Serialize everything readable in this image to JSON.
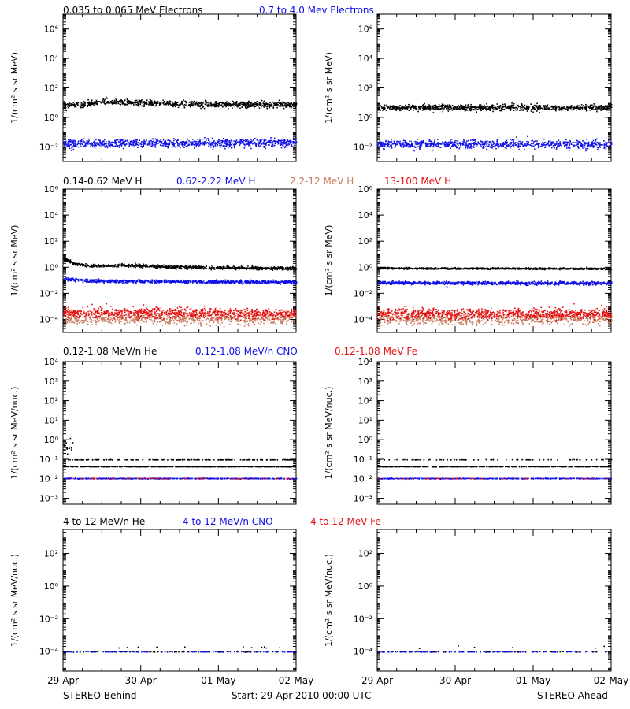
{
  "colors": {
    "black": "#000000",
    "blue": "#1010e6",
    "salmon": "#c87a5e",
    "red": "#e61010"
  },
  "chart_data": [
    {
      "type": "scatter",
      "title_row": 0,
      "legend": [
        {
          "name": "0.035 to 0.065 MeV Electrons",
          "color": "black"
        },
        {
          "name": "0.7 to 4.0 Mev Electrons",
          "color": "blue"
        }
      ],
      "ylabel": "1/(cm² s sr MeV)",
      "yscale": "log",
      "ylim": [
        0.001,
        10000000
      ],
      "yticks": [
        {
          "v": 0.01,
          "label": "10⁻²"
        },
        {
          "v": 1,
          "label": "10⁰"
        },
        {
          "v": 100,
          "label": "10²"
        },
        {
          "v": 10000,
          "label": "10⁴"
        },
        {
          "v": 1000000,
          "label": "10⁶"
        }
      ],
      "panels": {
        "behind": [
          {
            "color": "black",
            "base": [
              [
                0,
                7
              ],
              [
                0.3,
                8
              ],
              [
                0.5,
                13
              ],
              [
                0.8,
                11
              ],
              [
                1.5,
                9
              ],
              [
                2.3,
                8
              ],
              [
                3,
                8
              ]
            ],
            "spread": 0.1,
            "n": 900
          },
          {
            "color": "blue",
            "base": [
              [
                0,
                0.018
              ],
              [
                3,
                0.02
              ]
            ],
            "spread": 0.14,
            "n": 900
          }
        ],
        "ahead": [
          {
            "color": "black",
            "base": [
              [
                0,
                5
              ],
              [
                3,
                5
              ]
            ],
            "spread": 0.1,
            "n": 900
          },
          {
            "color": "blue",
            "base": [
              [
                0,
                0.016
              ],
              [
                3,
                0.016
              ]
            ],
            "spread": 0.14,
            "n": 900
          }
        ]
      }
    },
    {
      "type": "scatter",
      "title_row": 1,
      "legend": [
        {
          "name": "0.14-0.62 MeV H",
          "color": "black"
        },
        {
          "name": "0.62-2.22 MeV H",
          "color": "blue"
        },
        {
          "name": "2.2-12 MeV H",
          "color": "salmon"
        },
        {
          "name": "13-100 MeV H",
          "color": "red"
        }
      ],
      "ylabel": "1/(cm² s sr MeV)",
      "yscale": "log",
      "ylim": [
        1e-05,
        1000000
      ],
      "yticks": [
        {
          "v": 0.0001,
          "label": "10⁻⁴"
        },
        {
          "v": 0.01,
          "label": "10⁻²"
        },
        {
          "v": 1,
          "label": "10⁰"
        },
        {
          "v": 100,
          "label": "10²"
        },
        {
          "v": 10000,
          "label": "10⁴"
        },
        {
          "v": 1000000,
          "label": "10⁶"
        }
      ],
      "panels": {
        "behind": [
          {
            "color": "black",
            "base": [
              [
                0,
                5
              ],
              [
                0.15,
                2
              ],
              [
                0.35,
                1.4
              ],
              [
                0.8,
                1.6
              ],
              [
                1.2,
                1.2
              ],
              [
                2,
                1
              ],
              [
                3,
                0.9
              ]
            ],
            "spread": 0.06,
            "n": 900
          },
          {
            "color": "blue",
            "base": [
              [
                0,
                0.14
              ],
              [
                0.3,
                0.1
              ],
              [
                1,
                0.09
              ],
              [
                3,
                0.08
              ]
            ],
            "spread": 0.06,
            "n": 900
          },
          {
            "color": "salmon",
            "base": [
              [
                0,
                0.00012
              ],
              [
                3,
                0.00012
              ]
            ],
            "spread": 0.22,
            "n": 700
          },
          {
            "color": "red",
            "base": [
              [
                0,
                0.00035
              ],
              [
                3,
                0.0003
              ]
            ],
            "spread": 0.2,
            "n": 900
          }
        ],
        "ahead": [
          {
            "color": "black",
            "base": [
              [
                0,
                0.9
              ],
              [
                3,
                0.85
              ]
            ],
            "spread": 0.03,
            "n": 900
          },
          {
            "color": "blue",
            "base": [
              [
                0,
                0.07
              ],
              [
                3,
                0.065
              ]
            ],
            "spread": 0.06,
            "n": 900
          },
          {
            "color": "salmon",
            "base": [
              [
                0,
                0.00012
              ],
              [
                3,
                0.00012
              ]
            ],
            "spread": 0.22,
            "n": 700
          },
          {
            "color": "red",
            "base": [
              [
                0,
                0.0003
              ],
              [
                3,
                0.0003
              ]
            ],
            "spread": 0.2,
            "n": 900
          }
        ]
      }
    },
    {
      "type": "scatter",
      "title_row": 2,
      "legend": [
        {
          "name": "0.12-1.08 MeV/n He",
          "color": "black"
        },
        {
          "name": "0.12-1.08 MeV/n CNO",
          "color": "blue"
        },
        {
          "name": "0.12-1.08 MeV Fe",
          "color": "red"
        }
      ],
      "ylabel": "1/(cm² s sr MeV/nuc.)",
      "yscale": "log",
      "ylim": [
        0.0005,
        10000
      ],
      "yticks": [
        {
          "v": 0.001,
          "label": "10⁻³"
        },
        {
          "v": 0.01,
          "label": "10⁻²"
        },
        {
          "v": 0.1,
          "label": "10⁻¹"
        },
        {
          "v": 1,
          "label": "10⁰"
        },
        {
          "v": 10,
          "label": "10¹"
        },
        {
          "v": 100,
          "label": "10²"
        },
        {
          "v": 1000,
          "label": "10³"
        },
        {
          "v": 10000,
          "label": "10⁴"
        }
      ],
      "panels": {
        "behind": [
          {
            "color": "black",
            "levels": [
              0.045,
              0.1
            ],
            "weights": [
              0.75,
              0.25
            ],
            "burst": [
              0,
              0.12,
              0.4
            ],
            "n": 700
          },
          {
            "color": "blue",
            "levels": [
              0.011
            ],
            "weights": [
              1
            ],
            "n": 500,
            "jitter": 0.01
          },
          {
            "color": "red",
            "levels": [
              0.011
            ],
            "weights": [
              1
            ],
            "n": 60,
            "jitter": 0.01
          }
        ],
        "ahead": [
          {
            "color": "black",
            "levels": [
              0.045,
              0.1
            ],
            "weights": [
              0.85,
              0.15
            ],
            "n": 500
          },
          {
            "color": "blue",
            "levels": [
              0.011
            ],
            "weights": [
              1
            ],
            "n": 400,
            "jitter": 0.01
          },
          {
            "color": "red",
            "levels": [
              0.011
            ],
            "weights": [
              1
            ],
            "n": 50,
            "jitter": 0.01
          }
        ]
      }
    },
    {
      "type": "scatter",
      "title_row": 3,
      "legend": [
        {
          "name": "4 to 12 MeV/n He",
          "color": "black"
        },
        {
          "name": "4 to 12 MeV/n CNO",
          "color": "blue"
        },
        {
          "name": "4 to 12 MeV Fe",
          "color": "red"
        }
      ],
      "ylabel": "1/(cm² s sr MeV/nuc.)",
      "yscale": "log",
      "ylim": [
        6e-06,
        3000
      ],
      "yticks": [
        {
          "v": 0.0001,
          "label": "10⁻⁴"
        },
        {
          "v": 0.01,
          "label": "10⁻²"
        },
        {
          "v": 1,
          "label": "10⁰"
        },
        {
          "v": 100,
          "label": "10²"
        }
      ],
      "panels": {
        "behind": [
          {
            "color": "black",
            "levels": [
              0.0001
            ],
            "weights": [
              1
            ],
            "n": 90,
            "jitter": 0.01
          },
          {
            "color": "blue",
            "levels": [
              0.0001
            ],
            "weights": [
              1
            ],
            "n": 110,
            "jitter": 0.01
          },
          {
            "color": "black",
            "levels": [
              0.0002
            ],
            "weights": [
              1
            ],
            "n": 12,
            "jitter": 0.05
          }
        ],
        "ahead": [
          {
            "color": "black",
            "levels": [
              0.0001
            ],
            "weights": [
              1
            ],
            "n": 70,
            "jitter": 0.01
          },
          {
            "color": "blue",
            "levels": [
              0.0001
            ],
            "weights": [
              1
            ],
            "n": 120,
            "jitter": 0.01
          },
          {
            "color": "black",
            "levels": [
              0.0002
            ],
            "weights": [
              1
            ],
            "n": 6,
            "jitter": 0.05
          }
        ]
      }
    }
  ],
  "x_axis": {
    "labels": [
      "29-Apr",
      "30-Apr",
      "01-May",
      "02-May"
    ],
    "range_days": [
      0,
      3
    ]
  },
  "footer": {
    "left": "STEREO Behind",
    "center": "Start: 29-Apr-2010 00:00 UTC",
    "right": "STEREO Ahead"
  }
}
